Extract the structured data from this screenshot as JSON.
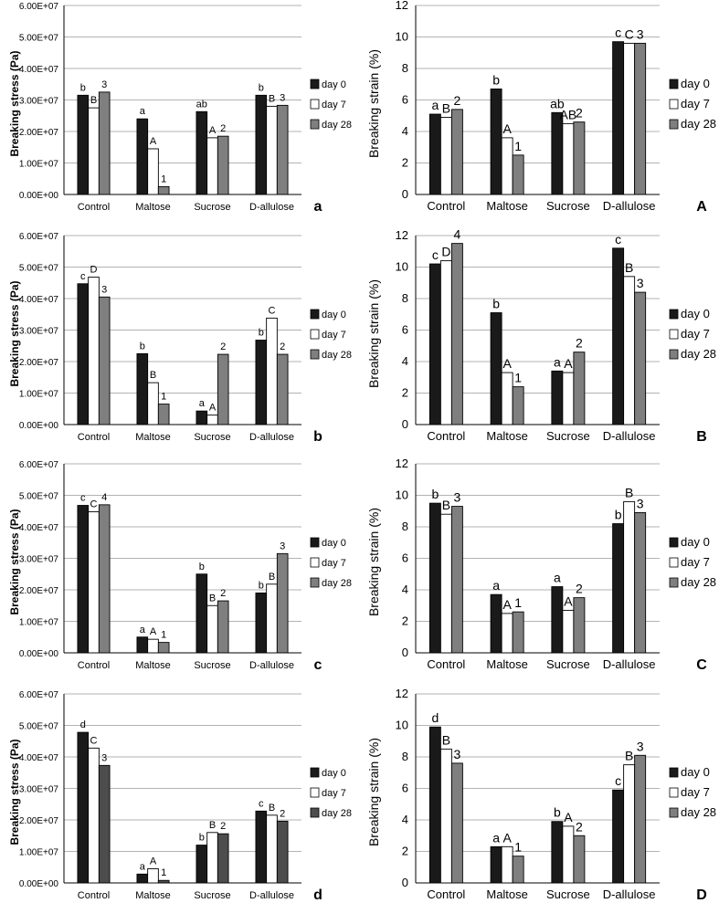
{
  "styles": {
    "series_colors": [
      "#1a1a1a",
      "#ffffff",
      "#7f7f7f"
    ],
    "series_colors_alt": [
      "#1a1a1a",
      "#ffffff",
      "#4d4d4d"
    ],
    "grid_color": "#9a9a9a"
  },
  "chart_data": [
    {
      "type": "bar",
      "panel_label": "a",
      "categories": [
        "Control",
        "Maltose",
        "Sucrose",
        "D-allulose"
      ],
      "ylabel": "Breaking stress (Pa)",
      "ylim": [
        0,
        60000000
      ],
      "yticks": [
        "0.00E+00",
        "1.00E+07",
        "2.00E+07",
        "3.00E+07",
        "4.00E+07",
        "5.00E+07",
        "6.00E+07"
      ],
      "series": [
        {
          "name": "day 0",
          "values": [
            31500000,
            24000000,
            26300000,
            31500000
          ],
          "letters": [
            "b",
            "a",
            "ab",
            "b"
          ]
        },
        {
          "name": "day 7",
          "values": [
            27500000,
            14500000,
            18000000,
            28000000
          ],
          "letters": [
            "B",
            "A",
            "A",
            "B"
          ]
        },
        {
          "name": "day 28",
          "values": [
            32500000,
            2500000,
            18500000,
            28300000
          ],
          "letters": [
            "3",
            "1",
            "2",
            "3"
          ]
        }
      ],
      "grid": true,
      "legend": "right"
    },
    {
      "type": "bar",
      "panel_label": "A",
      "categories": [
        "Control",
        "Maltose",
        "Sucrose",
        "D-allulose"
      ],
      "ylabel": "Breaking strain (%)",
      "ylim": [
        0,
        12
      ],
      "yticks": [
        "0",
        "2",
        "4",
        "6",
        "8",
        "10",
        "12"
      ],
      "series": [
        {
          "name": "day 0",
          "values": [
            5.1,
            6.7,
            5.2,
            9.7
          ],
          "letters": [
            "a",
            "b",
            "ab",
            "c"
          ]
        },
        {
          "name": "day 7",
          "values": [
            4.9,
            3.6,
            4.5,
            9.6
          ],
          "letters": [
            "B",
            "A",
            "AB",
            "C"
          ]
        },
        {
          "name": "day 28",
          "values": [
            5.4,
            2.5,
            4.6,
            9.6
          ],
          "letters": [
            "2",
            "1",
            "2",
            "3"
          ]
        }
      ],
      "grid": true,
      "legend": "right"
    },
    {
      "type": "bar",
      "panel_label": "b",
      "categories": [
        "Control",
        "Maltose",
        "Sucrose",
        "D-allulose"
      ],
      "ylabel": "Breaking stress (Pa)",
      "ylim": [
        0,
        60000000
      ],
      "yticks": [
        "0.00E+00",
        "1.00E+07",
        "2.00E+07",
        "3.00E+07",
        "4.00E+07",
        "5.00E+07",
        "6.00E+07"
      ],
      "series": [
        {
          "name": "day 0",
          "values": [
            44700000,
            22500000,
            4300000,
            26800000
          ],
          "letters": [
            "c",
            "b",
            "a",
            "b"
          ]
        },
        {
          "name": "day 7",
          "values": [
            46800000,
            13300000,
            3000000,
            33800000
          ],
          "letters": [
            "D",
            "B",
            "A",
            "C"
          ]
        },
        {
          "name": "day 28",
          "values": [
            40500000,
            6500000,
            22300000,
            22300000
          ],
          "letters": [
            "3",
            "1",
            "2",
            "2"
          ]
        }
      ],
      "grid": true,
      "legend": "right"
    },
    {
      "type": "bar",
      "panel_label": "B",
      "categories": [
        "Control",
        "Maltose",
        "Sucrose",
        "D-allulose"
      ],
      "ylabel": "Breaking strain (%)",
      "ylim": [
        0,
        12
      ],
      "yticks": [
        "0",
        "2",
        "4",
        "6",
        "8",
        "10",
        "12"
      ],
      "series": [
        {
          "name": "day 0",
          "values": [
            10.2,
            7.1,
            3.4,
            11.2
          ],
          "letters": [
            "c",
            "b",
            "a",
            "c"
          ]
        },
        {
          "name": "day 7",
          "values": [
            10.4,
            3.3,
            3.3,
            9.4
          ],
          "letters": [
            "D",
            "A",
            "A",
            "B"
          ]
        },
        {
          "name": "day 28",
          "values": [
            11.5,
            2.4,
            4.6,
            8.4
          ],
          "letters": [
            "4",
            "1",
            "2",
            "3"
          ]
        }
      ],
      "grid": true,
      "legend": "right"
    },
    {
      "type": "bar",
      "panel_label": "c",
      "categories": [
        "Control",
        "Maltose",
        "Sucrose",
        "D-allulose"
      ],
      "ylabel": "Breaking stress (Pa)",
      "ylim": [
        0,
        60000000
      ],
      "yticks": [
        "0.00E+00",
        "1.00E+07",
        "2.00E+07",
        "3.00E+07",
        "4.00E+07",
        "5.00E+07",
        "6.00E+07"
      ],
      "series": [
        {
          "name": "day 0",
          "values": [
            46800000,
            5000000,
            25000000,
            19000000
          ],
          "letters": [
            "c",
            "a",
            "b",
            "b"
          ]
        },
        {
          "name": "day 7",
          "values": [
            44800000,
            4300000,
            15000000,
            21800000
          ],
          "letters": [
            "C",
            "A",
            "B",
            "B"
          ]
        },
        {
          "name": "day 28",
          "values": [
            47000000,
            3300000,
            16500000,
            31500000
          ],
          "letters": [
            "4",
            "1",
            "2",
            "3"
          ]
        }
      ],
      "grid": true,
      "legend": "right"
    },
    {
      "type": "bar",
      "panel_label": "C",
      "categories": [
        "Control",
        "Maltose",
        "Sucrose",
        "D-allulose"
      ],
      "ylabel": "Breaking strain (%)",
      "ylim": [
        0,
        12
      ],
      "yticks": [
        "0",
        "2",
        "4",
        "6",
        "8",
        "10",
        "12"
      ],
      "series": [
        {
          "name": "day 0",
          "values": [
            9.5,
            3.7,
            4.2,
            8.2
          ],
          "letters": [
            "b",
            "a",
            "a",
            "b"
          ]
        },
        {
          "name": "day 7",
          "values": [
            8.8,
            2.5,
            2.7,
            9.6
          ],
          "letters": [
            "B",
            "A",
            "A",
            "B"
          ]
        },
        {
          "name": "day 28",
          "values": [
            9.3,
            2.6,
            3.5,
            8.9
          ],
          "letters": [
            "3",
            "1",
            "2",
            "3"
          ]
        }
      ],
      "grid": true,
      "legend": "right"
    },
    {
      "type": "bar",
      "panel_label": "d",
      "categories": [
        "Control",
        "Maltose",
        "Sucrose",
        "D-allulose"
      ],
      "ylabel": "Breaking stress (Pa)",
      "ylim": [
        0,
        60000000
      ],
      "yticks": [
        "0.00E+00",
        "1.00E+07",
        "2.00E+07",
        "3.00E+07",
        "4.00E+07",
        "5.00E+07",
        "6.00E+07"
      ],
      "series": [
        {
          "name": "day 0",
          "values": [
            47800000,
            2800000,
            12000000,
            22800000
          ],
          "letters": [
            "d",
            "a",
            "b",
            "c"
          ]
        },
        {
          "name": "day 7",
          "values": [
            42800000,
            4500000,
            16000000,
            21500000
          ],
          "letters": [
            "C",
            "A",
            "B",
            "B"
          ]
        },
        {
          "name": "day 28",
          "values": [
            37300000,
            800000,
            15600000,
            19600000
          ],
          "letters": [
            "3",
            "1",
            "2",
            "2"
          ]
        }
      ],
      "grid": true,
      "legend": "right"
    },
    {
      "type": "bar",
      "panel_label": "D",
      "categories": [
        "Control",
        "Maltose",
        "Sucrose",
        "D-allulose"
      ],
      "ylabel": "Breaking strain (%)",
      "ylim": [
        0,
        12
      ],
      "yticks": [
        "0",
        "2",
        "4",
        "6",
        "8",
        "10",
        "12"
      ],
      "series": [
        {
          "name": "day 0",
          "values": [
            9.9,
            2.3,
            3.9,
            5.9
          ],
          "letters": [
            "d",
            "a",
            "b",
            "c"
          ]
        },
        {
          "name": "day 7",
          "values": [
            8.5,
            2.3,
            3.6,
            7.5
          ],
          "letters": [
            "B",
            "A",
            "A",
            "B"
          ]
        },
        {
          "name": "day 28",
          "values": [
            7.6,
            1.7,
            3.0,
            8.1
          ],
          "letters": [
            "3",
            "1",
            "2",
            "3"
          ]
        }
      ],
      "grid": true,
      "legend": "right"
    }
  ]
}
